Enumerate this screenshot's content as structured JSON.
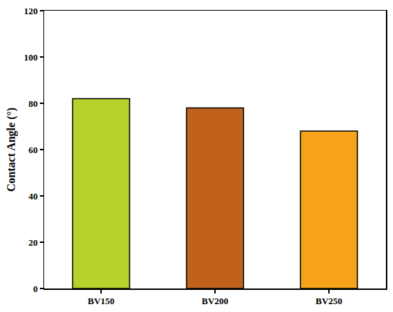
{
  "chart_data": {
    "type": "bar",
    "y_label": "Contact Angle (°)",
    "categories": [
      "BV150",
      "BV200",
      "BV250"
    ],
    "values": [
      82,
      78,
      68
    ],
    "colors": [
      "#b5d32a",
      "#c0621c",
      "#f6a21a"
    ],
    "ylim": [
      0,
      120
    ],
    "yticks": [
      0,
      20,
      40,
      60,
      80,
      100,
      120
    ],
    "grid": false
  }
}
